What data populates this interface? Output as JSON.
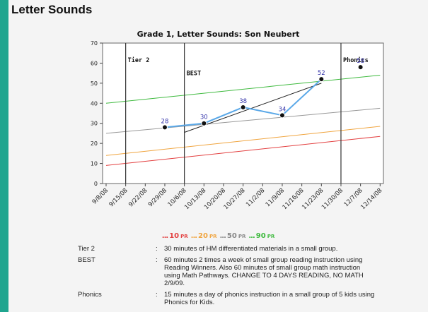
{
  "panel": {
    "title": "Letter Sounds"
  },
  "colors": {
    "progress_line": "#5aa8e8",
    "trend_line": "#222222",
    "p10": "#e34040",
    "p20": "#f0a540",
    "p50": "#999999",
    "p90": "#3fba3f",
    "point_label": "#3333aa"
  },
  "legend": [
    {
      "dots": "...",
      "label": "10",
      "suffix": "PR",
      "color": "#e34040"
    },
    {
      "dots": "...",
      "label": "20",
      "suffix": "PR",
      "color": "#f0a540"
    },
    {
      "dots": "...",
      "label": "50",
      "suffix": "PR",
      "color": "#888888"
    },
    {
      "dots": "...",
      "label": "90",
      "suffix": "PR",
      "color": "#3fba3f"
    }
  ],
  "chart_data": {
    "type": "line",
    "title": "Grade 1, Letter Sounds: Son Neubert",
    "xlabel": "",
    "ylabel": "",
    "ylim": [
      0,
      70
    ],
    "yticks": [
      0,
      10,
      20,
      30,
      40,
      50,
      60,
      70
    ],
    "categories": [
      "9/8/08",
      "9/15/08",
      "9/22/08",
      "9/29/08",
      "10/6/08",
      "10/13/08",
      "10/20/08",
      "10/27/08",
      "11/2/08",
      "11/9/08",
      "11/16/08",
      "11/23/08",
      "11/30/08",
      "12/7/08",
      "12/14/08"
    ],
    "series": [
      {
        "name": "scores",
        "points": [
          {
            "x": "9/29/08",
            "y": 28
          },
          {
            "x": "10/13/08",
            "y": 30
          },
          {
            "x": "10/27/08",
            "y": 38
          },
          {
            "x": "11/9/08",
            "y": 34
          },
          {
            "x": "11/23/08",
            "y": 52
          },
          {
            "x": "12/7/08",
            "y": 58
          }
        ]
      },
      {
        "name": "10PR",
        "from": {
          "x": "9/8/08",
          "y": 9
        },
        "to": {
          "x": "12/14/08",
          "y": 23.5
        }
      },
      {
        "name": "20PR",
        "from": {
          "x": "9/8/08",
          "y": 14
        },
        "to": {
          "x": "12/14/08",
          "y": 28.5
        }
      },
      {
        "name": "50PR",
        "from": {
          "x": "9/8/08",
          "y": 25
        },
        "to": {
          "x": "12/14/08",
          "y": 37.5
        }
      },
      {
        "name": "90PR",
        "from": {
          "x": "9/8/08",
          "y": 40
        },
        "to": {
          "x": "12/14/08",
          "y": 54
        }
      },
      {
        "name": "trend",
        "from": {
          "x": "10/6/08",
          "y": 25.5
        },
        "to": {
          "x": "11/23/08",
          "y": 50
        }
      }
    ],
    "phases": [
      {
        "label": "Tier 2",
        "x": "9/15/08"
      },
      {
        "label": "BEST",
        "x": "10/6/08"
      },
      {
        "label": "Phonics",
        "x": "11/30/08"
      }
    ],
    "grid": false,
    "legend": "bottom"
  },
  "notes": [
    {
      "label": "Tier 2",
      "text": "30 minutes of HM differentiated materials in a small group."
    },
    {
      "label": "BEST",
      "text": "60 minutes 2 times a week of small group reading instruction using Reading Winners. Also 60 minutes of small group math instruction using Math Pathways. CHANGE TO 4 DAYS READING, NO MATH 2/9/09."
    },
    {
      "label": "Phonics",
      "text": "15 minutes a day of phonics instruction in a small group of 5 kids using Phonics for Kids."
    }
  ]
}
